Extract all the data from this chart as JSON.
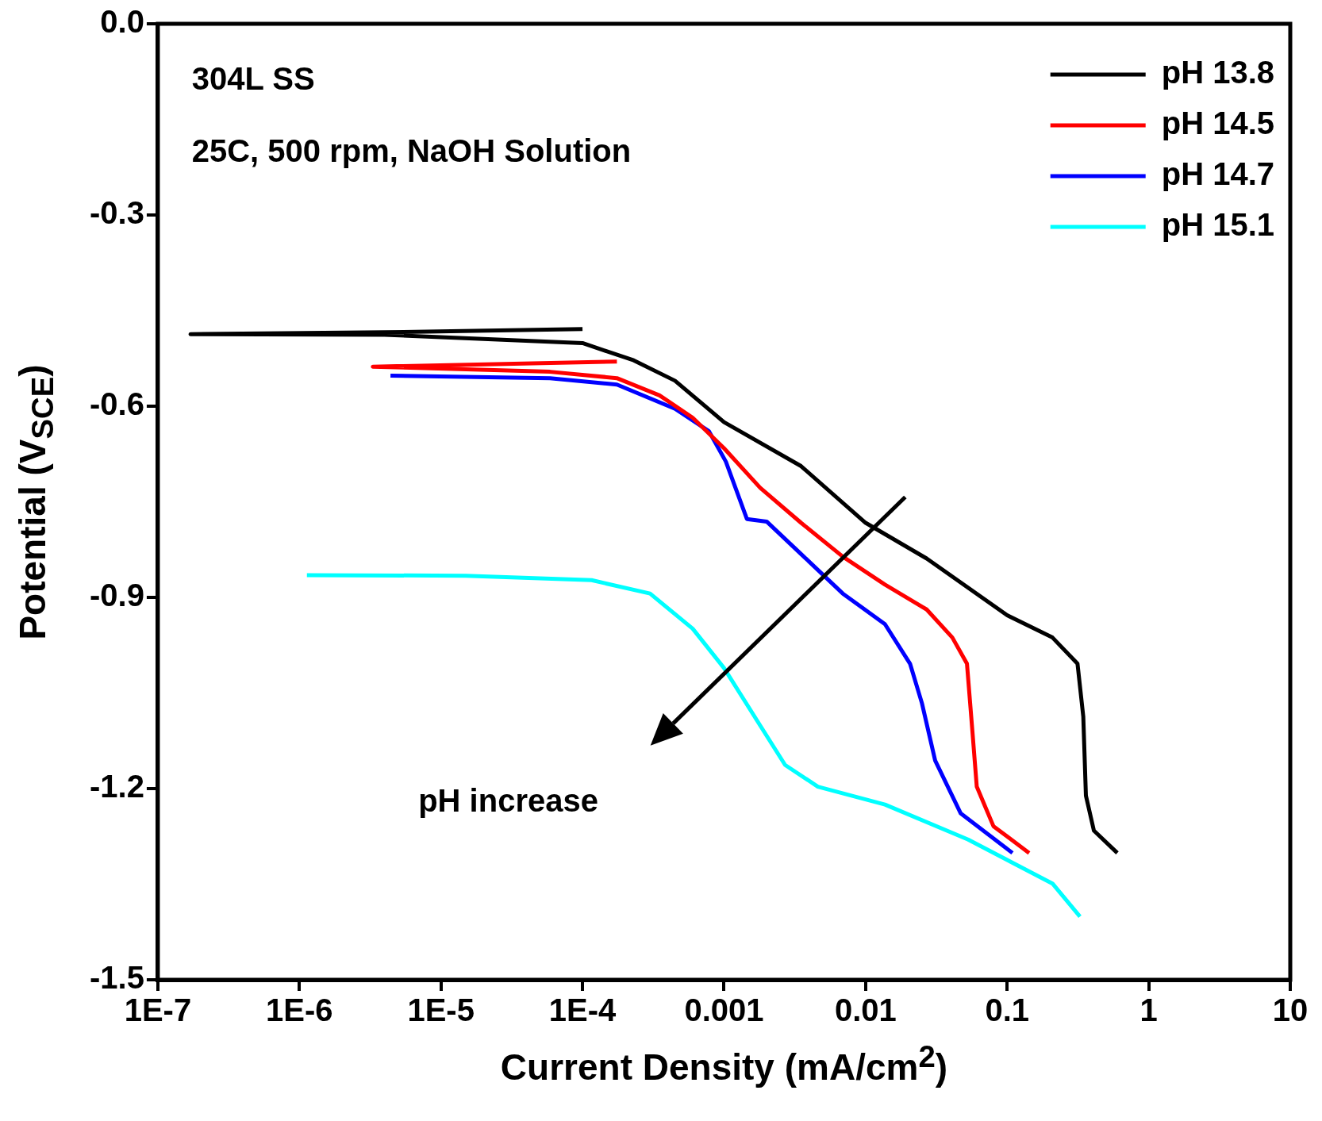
{
  "chart_data": {
    "type": "line",
    "xlabel": "Current Density (mA/cm$^{2}$)",
    "ylabel": "Potential (V$_{SCE}$)",
    "annotations": [
      "304L SS",
      "25C, 500 rpm, NaOH Solution",
      "pH increase"
    ],
    "log": "x",
    "xlim": [
      1e-07,
      10
    ],
    "ylim": [
      -1.5,
      0
    ],
    "xticks": [
      {
        "value": 1e-07,
        "label": "1E-7"
      },
      {
        "value": 1e-06,
        "label": "1E-6"
      },
      {
        "value": 1e-05,
        "label": "1E-5"
      },
      {
        "value": 0.0001,
        "label": "1E-4"
      },
      0.001,
      0.01,
      0.1,
      1,
      10
    ],
    "yticks": [
      -1.5,
      -1.2,
      -0.9,
      -0.6,
      -0.3,
      {
        "value": 0,
        "label": "0.0"
      }
    ],
    "legend": "top right",
    "marker": "none",
    "line_style": "solid",
    "grid": false,
    "series": [
      {
        "name": "pH 13.8",
        "color": "#000000",
        "x": [
          0.0001,
          4e-06,
          1.7e-07,
          4e-06,
          0.0001,
          0.00023,
          0.00045,
          0.001,
          0.0035,
          0.01,
          0.027,
          0.1,
          0.209,
          0.314,
          0.345,
          0.36,
          0.41,
          0.6
        ],
        "values": [
          -0.479,
          -0.484,
          -0.487,
          -0.488,
          -0.501,
          -0.528,
          -0.56,
          -0.625,
          -0.694,
          -0.783,
          -0.839,
          -0.928,
          -0.963,
          -1.004,
          -1.087,
          -1.211,
          -1.266,
          -1.301
        ]
      },
      {
        "name": "pH 14.5",
        "color": "#ff0000",
        "x": [
          0.000175,
          3.3e-06,
          5.9e-05,
          0.000175,
          0.00035,
          0.0006,
          0.001,
          0.0018,
          0.0035,
          0.0069,
          0.0137,
          0.027,
          0.041,
          0.052,
          0.057,
          0.061,
          0.08,
          0.143
        ],
        "values": [
          -0.53,
          -0.538,
          -0.546,
          -0.556,
          -0.583,
          -0.618,
          -0.666,
          -0.728,
          -0.783,
          -0.836,
          -0.88,
          -0.919,
          -0.963,
          -1.004,
          -1.114,
          -1.197,
          -1.259,
          -1.301
        ]
      },
      {
        "name": "pH 14.7",
        "color": "#0000ff",
        "x": [
          4.4e-06,
          5.9e-05,
          0.000175,
          0.00045,
          0.00078,
          0.00103,
          0.00145,
          0.002,
          0.0035,
          0.0069,
          0.0137,
          0.0206,
          0.025,
          0.031,
          0.047,
          0.109
        ],
        "values": [
          -0.552,
          -0.556,
          -0.566,
          -0.604,
          -0.639,
          -0.687,
          -0.777,
          -0.781,
          -0.832,
          -0.894,
          -0.942,
          -1.004,
          -1.066,
          -1.156,
          -1.239,
          -1.301
        ]
      },
      {
        "name": "pH 15.1",
        "color": "#00ffff",
        "x": [
          1.13e-06,
          1.5e-05,
          0.000116,
          0.0003,
          0.0006,
          0.001,
          0.0018,
          0.0027,
          0.0046,
          0.0137,
          0.053,
          0.209,
          0.327
        ],
        "values": [
          -0.865,
          -0.866,
          -0.873,
          -0.894,
          -0.949,
          -1.011,
          -1.101,
          -1.163,
          -1.197,
          -1.225,
          -1.28,
          -1.349,
          -1.401
        ]
      }
    ]
  }
}
